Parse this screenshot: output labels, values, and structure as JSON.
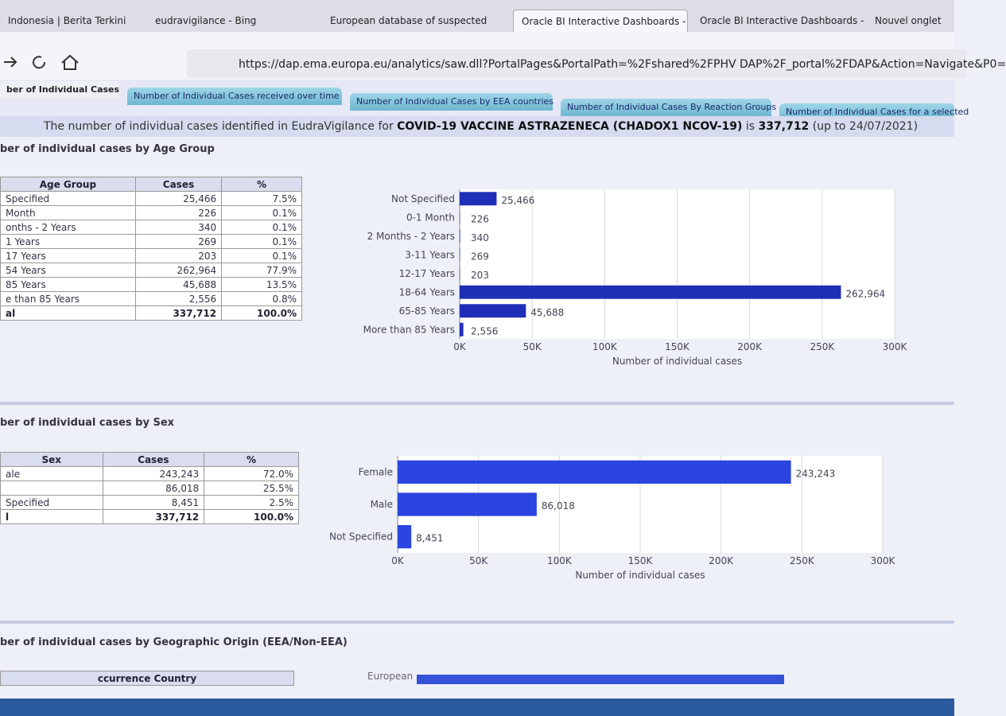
{
  "browser": {
    "tabs": [
      "Indonesia | Berita Terkini",
      "eudravigilance - Bing",
      "European database of suspected",
      "Oracle BI Interactive Dashboards -",
      "Oracle BI Interactive Dashboards -",
      "Nouvel onglet"
    ],
    "url": "https://dap.ema.europa.eu/analytics/saw.dll?PortalPages&PortalPath=%2Fshared%2FPHV DAP%2F_portal%2FDAP&Action=Navigate&P0="
  },
  "dashboard_tabs": [
    "ber of Individual Cases",
    "Number of Individual Cases received over time",
    "Number of Individual Cases by EEA countries",
    "Number of Individual Cases By Reaction Groups",
    "Number of Individual Cases for a selected"
  ],
  "headline": {
    "text": "The number of individual cases identified in EudraVigilance for",
    "product": "COVID-19 VACCINE ASTRAZENECA (CHADOX1 NCOV-19)",
    "is": "is",
    "total": "337,712",
    "date": "(up to 24/07/2021)"
  },
  "sections": [
    {
      "title": "ber of individual cases by Age Group",
      "table": {
        "columns": [
          "Age Group",
          "Cases",
          "%"
        ],
        "rows": [
          [
            "Specified",
            "25,466",
            "7.5%"
          ],
          [
            "Month",
            "226",
            "0.1%"
          ],
          [
            "onths - 2 Years",
            "340",
            "0.1%"
          ],
          [
            "1 Years",
            "269",
            "0.1%"
          ],
          [
            "17 Years",
            "203",
            "0.1%"
          ],
          [
            "54 Years",
            "262,964",
            "77.9%"
          ],
          [
            "85 Years",
            "45,688",
            "13.5%"
          ],
          [
            "e than 85 Years",
            "2,556",
            "0.8%"
          ],
          [
            "al",
            "337,712",
            "100.0%"
          ]
        ]
      }
    },
    {
      "title": "ber of individual cases by Sex",
      "table": {
        "columns": [
          "Sex",
          "Cases",
          "%"
        ],
        "rows": [
          [
            "ale",
            "243,243",
            "72.0%"
          ],
          [
            "",
            "86,018",
            "25.5%"
          ],
          [
            "Specified",
            "8,451",
            "2.5%"
          ],
          [
            "l",
            "337,712",
            "100.0%"
          ]
        ]
      }
    },
    {
      "title": "ber of individual cases by Geographic Origin (EEA/Non-EEA)",
      "table": {
        "columns": [
          "ccurrence Country"
        ],
        "rows": []
      },
      "partial_label": "European"
    }
  ],
  "chart_data": [
    {
      "type": "hbar",
      "categories": [
        "Not Specified",
        "0-1 Month",
        "2 Months - 2 Years",
        "3-11 Years",
        "12-17 Years",
        "18-64 Years",
        "65-85 Years",
        "More than 85 Years"
      ],
      "values": [
        25466,
        226,
        340,
        269,
        203,
        262964,
        45688,
        2556
      ],
      "value_labels": [
        "25,466",
        "226",
        "340",
        "269",
        "203",
        "262,964",
        "45,688",
        "2,556"
      ],
      "color": "#1f2fb8",
      "xlabel": "Number of individual cases",
      "xlim": [
        0,
        300000
      ],
      "xticks": [
        {
          "value": 0,
          "label": "0K"
        },
        {
          "value": 50000,
          "label": "50K"
        },
        {
          "value": 100000,
          "label": "100K"
        },
        {
          "value": 150000,
          "label": "150K"
        },
        {
          "value": 200000,
          "label": "200K"
        },
        {
          "value": 250000,
          "label": "250K"
        },
        {
          "value": 300000,
          "label": "300K"
        }
      ],
      "grid": true
    },
    {
      "type": "hbar",
      "categories": [
        "Female",
        "Male",
        "Not Specified"
      ],
      "values": [
        243243,
        86018,
        8451
      ],
      "value_labels": [
        "243,243",
        "86,018",
        "8,451"
      ],
      "color": "#2a45e0",
      "xlabel": "Number of individual cases",
      "xlim": [
        0,
        300000
      ],
      "xticks": [
        {
          "value": 0,
          "label": "0K"
        },
        {
          "value": 50000,
          "label": "50K"
        },
        {
          "value": 100000,
          "label": "100K"
        },
        {
          "value": 150000,
          "label": "150K"
        },
        {
          "value": 200000,
          "label": "200K"
        },
        {
          "value": 250000,
          "label": "250K"
        },
        {
          "value": 300000,
          "label": "300K"
        }
      ],
      "grid": true
    }
  ]
}
